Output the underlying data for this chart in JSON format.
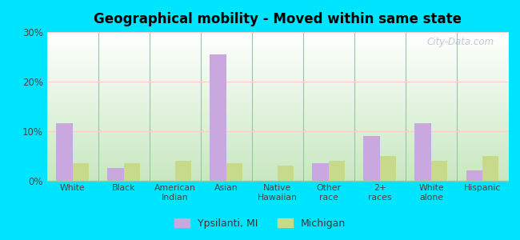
{
  "title": "Geographical mobility - Moved within same state",
  "categories": [
    "White",
    "Black",
    "American\nIndian",
    "Asian",
    "Native\nHawaiian",
    "Other\nrace",
    "2+\nraces",
    "White\nalone",
    "Hispanic"
  ],
  "ypsilanti_values": [
    11.5,
    2.5,
    0,
    25.5,
    0,
    3.5,
    9.0,
    11.5,
    2.0
  ],
  "michigan_values": [
    3.5,
    3.5,
    4.0,
    3.5,
    3.0,
    4.0,
    5.0,
    4.0,
    5.0
  ],
  "ypsilanti_color": "#c9a8e0",
  "michigan_color": "#c8d98a",
  "gradient_top": "#ffffff",
  "gradient_bottom": "#c8e8c0",
  "outer_background": "#00e5ff",
  "ylim": [
    0,
    30
  ],
  "yticks": [
    0,
    10,
    20,
    30
  ],
  "ytick_labels": [
    "0%",
    "10%",
    "20%",
    "30%"
  ],
  "legend_ypsilanti": "Ypsilanti, MI",
  "legend_michigan": "Michigan",
  "watermark": "City-Data.com"
}
